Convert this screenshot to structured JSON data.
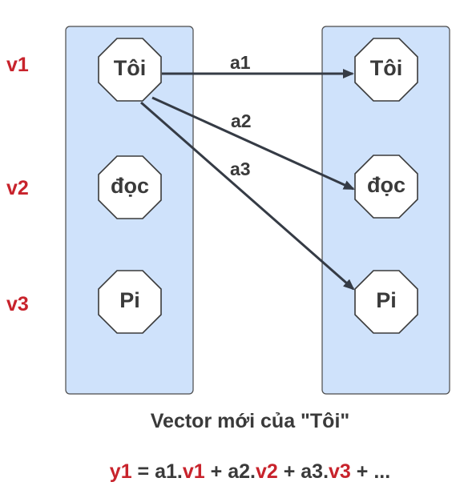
{
  "row_labels": [
    "v1",
    "v2",
    "v3"
  ],
  "left_column": {
    "nodes": [
      "Tôi",
      "đọc",
      "Pi"
    ]
  },
  "right_column": {
    "nodes": [
      "Tôi",
      "đọc",
      "Pi"
    ]
  },
  "arrows": [
    {
      "label": "a1",
      "from": "Tôi",
      "to": "Tôi"
    },
    {
      "label": "a2",
      "from": "Tôi",
      "to": "đọc"
    },
    {
      "label": "a3",
      "from": "Tôi",
      "to": "Pi"
    }
  ],
  "caption": "Vector mới của \"Tôi\"",
  "formula": {
    "y": "y1",
    "eq": " = ",
    "a1": "a1.",
    "v1": "v1",
    "plus1": " + ",
    "a2": "a2.",
    "v2": "v2",
    "plus2": " + ",
    "a3": "a3.",
    "v3": "v3",
    "tail": " + ..."
  },
  "colors": {
    "panel_fill": "#cfe2fb",
    "panel_stroke": "#4a4a4a",
    "node_fill": "#ffffff",
    "arrow": "#353b45",
    "accent_red": "#c8232c",
    "text": "#3a3a3a"
  }
}
